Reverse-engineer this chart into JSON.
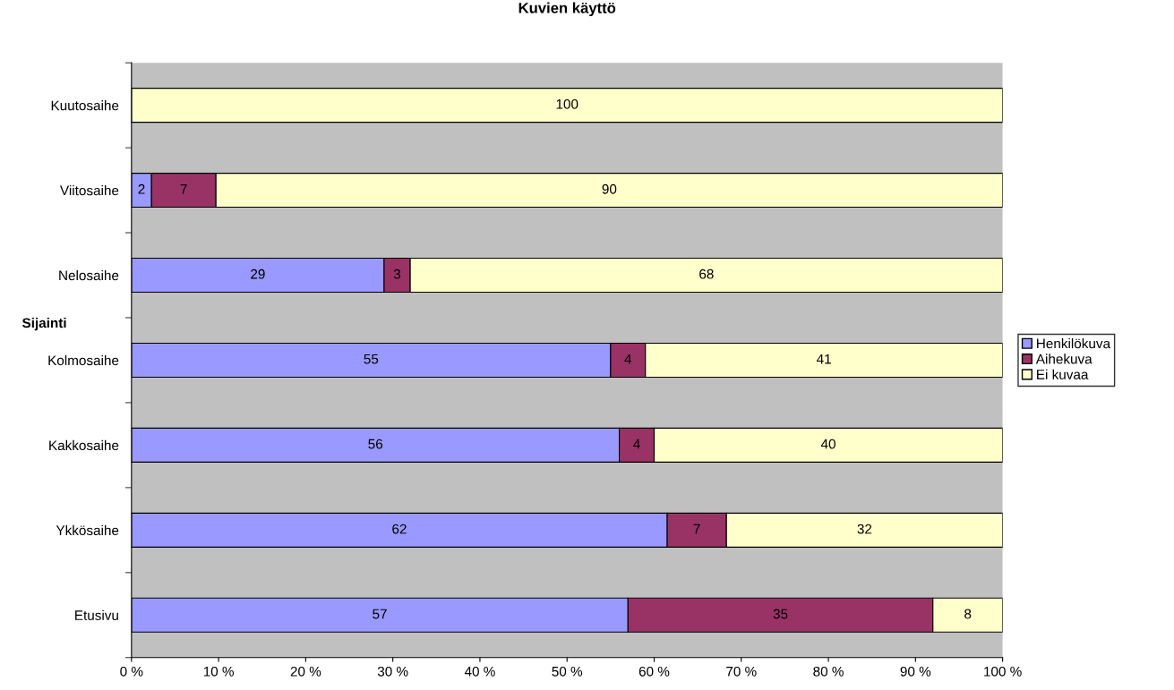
{
  "chart_data": {
    "type": "bar",
    "orientation": "horizontal",
    "stacked": true,
    "title": "Kuvien käyttö",
    "ylabel": "Sijainti",
    "categories": [
      "Kuutosaihe",
      "Viitosaihe",
      "Nelosaihe",
      "Kolmosaihe",
      "Kakkosaihe",
      "Ykkösaihe",
      "Etusivu"
    ],
    "series": [
      {
        "name": "Henkilökuva",
        "color": "#9999ff",
        "values": [
          0,
          2.3,
          29,
          55,
          56,
          61.5,
          57
        ],
        "value_labels": [
          null,
          "2",
          "29",
          "55",
          "56",
          "62",
          "57"
        ]
      },
      {
        "name": "Aihekuva",
        "color": "#993366",
        "values": [
          0,
          7.4,
          3,
          4,
          4,
          6.8,
          35
        ],
        "value_labels": [
          null,
          "7",
          "3",
          "4",
          "4",
          "7",
          "35"
        ]
      },
      {
        "name": "Ei kuvaa",
        "color": "#ffffcc",
        "values": [
          100,
          90.3,
          68,
          41,
          40,
          31.7,
          8
        ],
        "value_labels": [
          "100",
          "90",
          "68",
          "41",
          "40",
          "32",
          "8"
        ]
      }
    ],
    "xlim": [
      0,
      100
    ],
    "xticks": [
      {
        "value": 0,
        "label": "0 %"
      },
      {
        "value": 10,
        "label": "10 %"
      },
      {
        "value": 20,
        "label": "20 %"
      },
      {
        "value": 30,
        "label": "30 %"
      },
      {
        "value": 40,
        "label": "40 %"
      },
      {
        "value": 50,
        "label": "50 %"
      },
      {
        "value": 60,
        "label": "60 %"
      },
      {
        "value": 70,
        "label": "70 %"
      },
      {
        "value": 80,
        "label": "80 %"
      },
      {
        "value": 90,
        "label": "90 %"
      },
      {
        "value": 100,
        "label": "100 %"
      }
    ],
    "grid": false,
    "legend": "right"
  }
}
